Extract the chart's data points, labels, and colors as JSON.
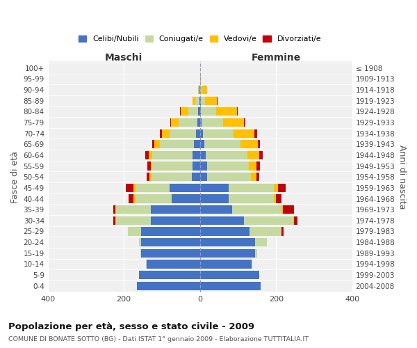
{
  "age_groups": [
    "0-4",
    "5-9",
    "10-14",
    "15-19",
    "20-24",
    "25-29",
    "30-34",
    "35-39",
    "40-44",
    "45-49",
    "50-54",
    "55-59",
    "60-64",
    "65-69",
    "70-74",
    "75-79",
    "80-84",
    "85-89",
    "90-94",
    "95-99",
    "100+"
  ],
  "birth_years": [
    "2004-2008",
    "1999-2003",
    "1994-1998",
    "1989-1993",
    "1984-1988",
    "1979-1983",
    "1974-1978",
    "1969-1973",
    "1964-1968",
    "1959-1963",
    "1954-1958",
    "1949-1953",
    "1944-1948",
    "1939-1943",
    "1934-1938",
    "1929-1933",
    "1924-1928",
    "1919-1923",
    "1914-1918",
    "1909-1913",
    "≤ 1908"
  ],
  "maschi": {
    "celibi": [
      165,
      160,
      140,
      155,
      155,
      155,
      130,
      130,
      75,
      80,
      22,
      20,
      20,
      15,
      10,
      6,
      5,
      2,
      1,
      0,
      0
    ],
    "coniugati": [
      0,
      0,
      1,
      2,
      5,
      35,
      90,
      90,
      95,
      90,
      105,
      105,
      105,
      90,
      70,
      50,
      25,
      10,
      2,
      0,
      0
    ],
    "vedovi": [
      0,
      0,
      0,
      0,
      0,
      0,
      2,
      2,
      5,
      5,
      5,
      5,
      10,
      15,
      20,
      20,
      20,
      8,
      2,
      0,
      0
    ],
    "divorziati": [
      0,
      0,
      0,
      0,
      0,
      0,
      5,
      5,
      12,
      20,
      8,
      8,
      8,
      5,
      5,
      2,
      2,
      0,
      0,
      0,
      0
    ]
  },
  "femmine": {
    "nubili": [
      160,
      155,
      135,
      145,
      145,
      130,
      115,
      85,
      75,
      75,
      18,
      18,
      15,
      12,
      8,
      5,
      3,
      2,
      1,
      0,
      0
    ],
    "coniugate": [
      0,
      0,
      2,
      5,
      30,
      85,
      130,
      130,
      120,
      120,
      115,
      110,
      110,
      95,
      80,
      55,
      40,
      12,
      5,
      1,
      0
    ],
    "vedove": [
      0,
      0,
      0,
      0,
      0,
      0,
      2,
      2,
      5,
      10,
      15,
      20,
      30,
      45,
      55,
      55,
      55,
      30,
      12,
      2,
      0
    ],
    "divorziate": [
      0,
      0,
      0,
      0,
      0,
      5,
      10,
      30,
      15,
      20,
      8,
      10,
      10,
      5,
      8,
      5,
      2,
      2,
      0,
      0,
      0
    ]
  },
  "color_celibi": "#4472c4",
  "color_coniugati": "#c5d9a0",
  "color_vedovi": "#ffc000",
  "color_divorziati": "#c0000b",
  "title": "Popolazione per età, sesso e stato civile - 2009",
  "subtitle": "COMUNE DI BONATE SOTTO (BG) - Dati ISTAT 1° gennaio 2009 - Elaborazione TUTTITALIA.IT",
  "xlabel_left": "Maschi",
  "xlabel_right": "Femmine",
  "ylabel_left": "Fasce di età",
  "ylabel_right": "Anni di nascita",
  "xlim": 400,
  "bg_color": "#f0f0f0"
}
